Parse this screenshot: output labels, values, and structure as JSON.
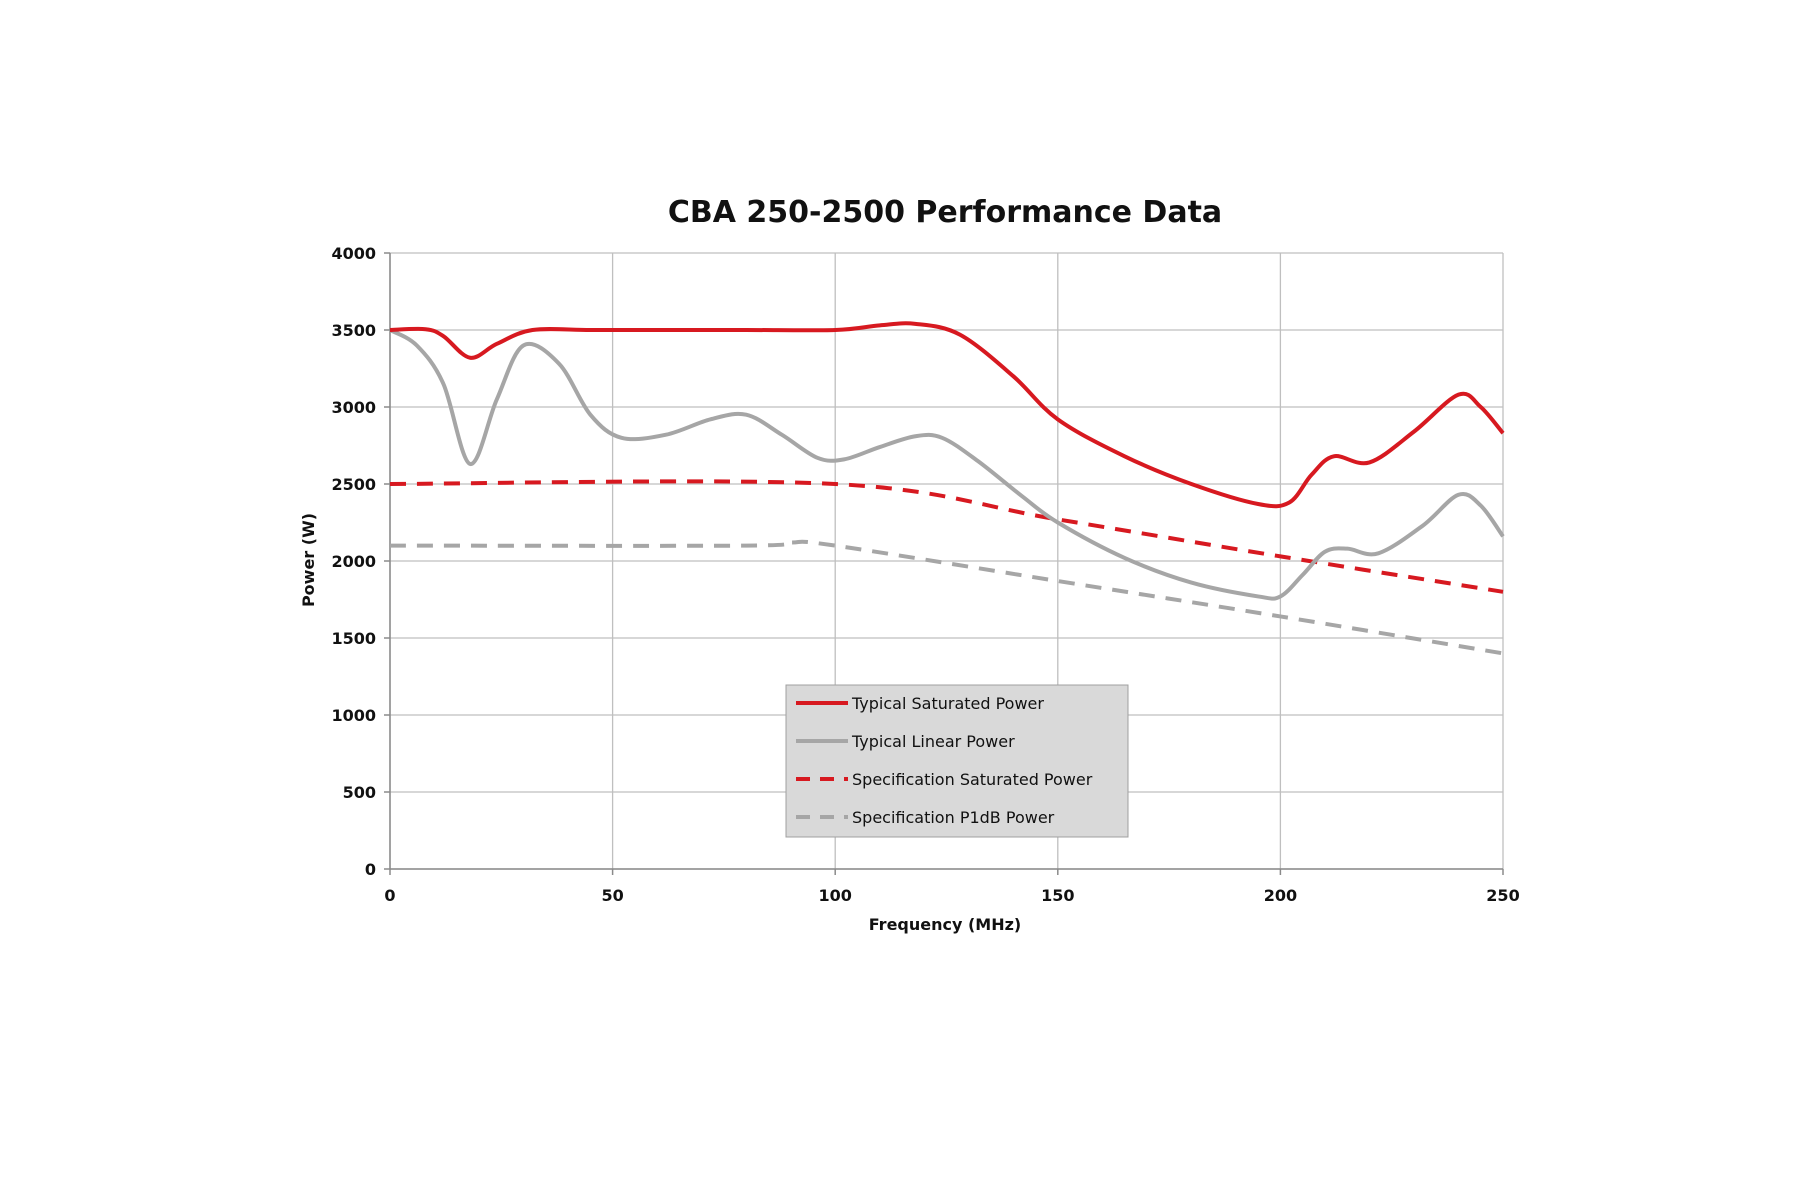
{
  "chart_data": {
    "type": "line",
    "title": "CBA 250-2500 Performance Data",
    "xlabel": "Frequency (MHz)",
    "ylabel": "Power (W)",
    "xlim": [
      0,
      250
    ],
    "ylim": [
      0,
      4000
    ],
    "xticks": [
      0,
      50,
      100,
      150,
      200,
      250
    ],
    "yticks": [
      0,
      500,
      1000,
      1500,
      2000,
      2500,
      3000,
      3500,
      4000
    ],
    "grid": true,
    "legend_position": "bottom-center",
    "series": [
      {
        "name": "Typical Saturated Power",
        "color": "#d71920",
        "style": "solid",
        "x": [
          0,
          8,
          12,
          18,
          24,
          32,
          45,
          60,
          80,
          100,
          110,
          118,
          128,
          140,
          150,
          165,
          180,
          195,
          202,
          207,
          212,
          220,
          230,
          240,
          245,
          250
        ],
        "y": [
          3500,
          3505,
          3460,
          3320,
          3410,
          3500,
          3500,
          3500,
          3500,
          3500,
          3530,
          3540,
          3470,
          3200,
          2920,
          2680,
          2500,
          2370,
          2380,
          2560,
          2680,
          2640,
          2840,
          3080,
          3000,
          2830
        ]
      },
      {
        "name": "Typical Linear Power",
        "color": "#a6a6a6",
        "style": "solid",
        "x": [
          0,
          6,
          12,
          18,
          24,
          30,
          38,
          45,
          52,
          62,
          72,
          80,
          88,
          96,
          102,
          110,
          118,
          124,
          132,
          142,
          150,
          165,
          180,
          195,
          200,
          205,
          210,
          215,
          222,
          232,
          240,
          245,
          250
        ],
        "y": [
          3500,
          3400,
          3150,
          2630,
          3050,
          3400,
          3280,
          2950,
          2800,
          2820,
          2920,
          2950,
          2820,
          2670,
          2660,
          2740,
          2810,
          2800,
          2650,
          2420,
          2250,
          2020,
          1860,
          1770,
          1770,
          1910,
          2060,
          2080,
          2050,
          2230,
          2430,
          2360,
          2160
        ]
      },
      {
        "name": "Specification Saturated Power",
        "color": "#d71920",
        "style": "dashed",
        "x": [
          0,
          100,
          150,
          200,
          250
        ],
        "y": [
          2500,
          2500,
          2270,
          2030,
          1800
        ]
      },
      {
        "name": "Specification P1dB Power",
        "color": "#a6a6a6",
        "style": "dashed",
        "x": [
          0,
          80,
          90,
          100,
          150,
          200,
          250
        ],
        "y": [
          2100,
          2100,
          2120,
          2100,
          1870,
          1640,
          1400
        ]
      }
    ]
  }
}
